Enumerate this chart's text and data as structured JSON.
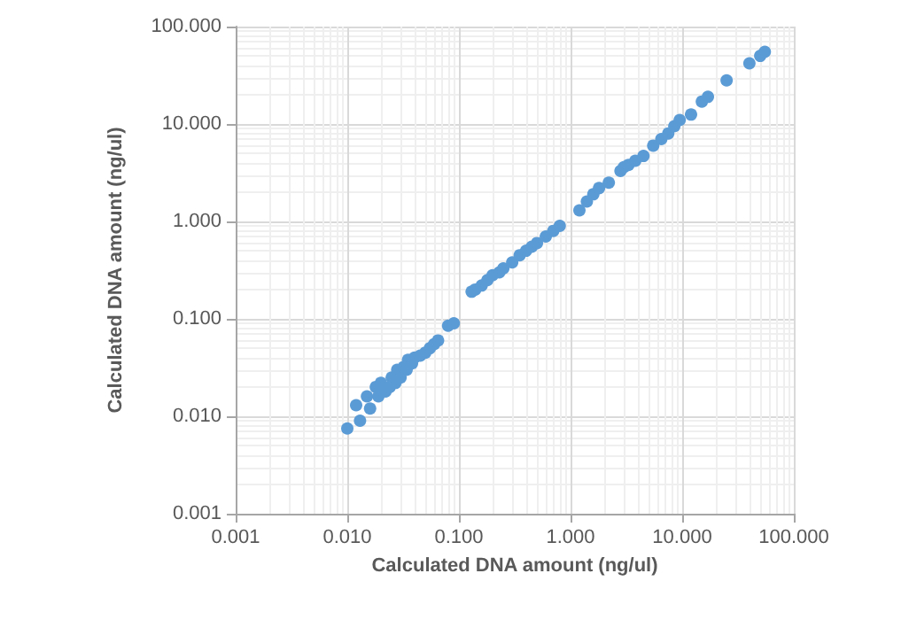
{
  "chart_data": {
    "type": "scatter",
    "xlabel": "Calculated DNA amount (ng/ul)",
    "ylabel": "Calculated DNA amount (ng/ul)",
    "log": "xy",
    "grid": true,
    "marker": "circle",
    "xlim": [
      0.001,
      100
    ],
    "ylim": [
      0.001,
      100
    ],
    "xticks": [
      {
        "value": 0.001,
        "label": "0.001"
      },
      {
        "value": 0.01,
        "label": "0.010"
      },
      {
        "value": 0.1,
        "label": "0.100"
      },
      {
        "value": 1,
        "label": "1.000"
      },
      {
        "value": 10,
        "label": "10.000"
      },
      {
        "value": 100,
        "label": "100.000"
      }
    ],
    "yticks": [
      {
        "value": 0.001,
        "label": "0.001"
      },
      {
        "value": 0.01,
        "label": "0.010"
      },
      {
        "value": 0.1,
        "label": "0.100"
      },
      {
        "value": 1,
        "label": "1.000"
      },
      {
        "value": 10,
        "label": "10.000"
      },
      {
        "value": 100,
        "label": "100.000"
      }
    ],
    "series": [
      {
        "color": "#5b9bd5",
        "x": [
          0.01,
          0.012,
          0.013,
          0.015,
          0.016,
          0.018,
          0.019,
          0.02,
          0.022,
          0.024,
          0.025,
          0.027,
          0.028,
          0.03,
          0.032,
          0.034,
          0.035,
          0.038,
          0.04,
          0.045,
          0.05,
          0.055,
          0.06,
          0.065,
          0.08,
          0.09,
          0.13,
          0.14,
          0.16,
          0.18,
          0.2,
          0.23,
          0.25,
          0.3,
          0.35,
          0.4,
          0.45,
          0.5,
          0.6,
          0.7,
          0.8,
          1.2,
          1.4,
          1.6,
          1.8,
          2.2,
          2.8,
          3,
          3.3,
          3.8,
          4.5,
          5.5,
          6.5,
          7.5,
          8.5,
          9.5,
          12,
          15,
          17,
          25,
          40,
          50,
          55
        ],
        "values": [
          0.0075,
          0.013,
          0.009,
          0.016,
          0.012,
          0.02,
          0.016,
          0.022,
          0.018,
          0.02,
          0.025,
          0.022,
          0.03,
          0.025,
          0.032,
          0.03,
          0.038,
          0.035,
          0.04,
          0.042,
          0.045,
          0.05,
          0.055,
          0.06,
          0.085,
          0.09,
          0.19,
          0.2,
          0.22,
          0.25,
          0.28,
          0.3,
          0.33,
          0.38,
          0.45,
          0.5,
          0.55,
          0.6,
          0.7,
          0.8,
          0.9,
          1.3,
          1.6,
          1.9,
          2.2,
          2.5,
          3.3,
          3.6,
          3.8,
          4.2,
          4.7,
          6,
          7,
          8,
          9.5,
          11,
          12.5,
          17,
          19,
          28,
          42,
          50,
          55
        ]
      }
    ]
  }
}
